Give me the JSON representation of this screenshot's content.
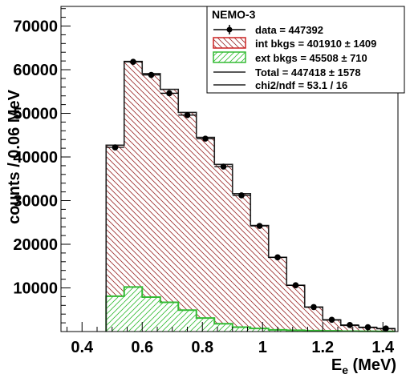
{
  "chart_data": {
    "type": "bar",
    "xlabel_main": "E",
    "xlabel_sub": "e",
    "xlabel_unit": " (MeV)",
    "ylabel": "counts / 0.06 MeV",
    "xlim": [
      0.33,
      1.45
    ],
    "ylim": [
      0,
      74500
    ],
    "x_ticks": [
      0.4,
      0.6,
      0.8,
      1.0,
      1.2,
      1.4
    ],
    "x_tick_labels": [
      "0.4",
      "0.6",
      "0.8",
      "1",
      "1.2",
      "1.4"
    ],
    "y_ticks": [
      10000,
      20000,
      30000,
      40000,
      50000,
      60000,
      70000
    ],
    "y_tick_labels": [
      "10000",
      "20000",
      "30000",
      "40000",
      "50000",
      "60000",
      "70000"
    ],
    "bin_edges": [
      0.48,
      0.54,
      0.6,
      0.66,
      0.72,
      0.78,
      0.84,
      0.9,
      0.96,
      1.02,
      1.08,
      1.14,
      1.2,
      1.26,
      1.32,
      1.38,
      1.44
    ],
    "series": [
      {
        "name": "data = 447392",
        "values": [
          42200,
          61800,
          58800,
          54600,
          49600,
          44200,
          37800,
          31200,
          24200,
          17000,
          10600,
          5600,
          2700,
          1500,
          1000,
          700
        ]
      },
      {
        "name": "int bkgs = 401910 ± 1409",
        "values": [
          34600,
          51700,
          51200,
          48800,
          45300,
          41400,
          36500,
          30600,
          23600,
          16600,
          10300,
          5400,
          2500,
          1300,
          850,
          600
        ]
      },
      {
        "name": "ext bkgs = 45508 ± 710",
        "values": [
          8100,
          10200,
          7900,
          6700,
          4900,
          3100,
          1800,
          1000,
          700,
          400,
          300,
          200,
          150,
          100,
          80,
          50
        ]
      },
      {
        "name": "Total = 447418 ± 1578",
        "values": [
          42700,
          61900,
          59100,
          55500,
          50200,
          44500,
          38300,
          31600,
          24300,
          17000,
          10600,
          5600,
          2650,
          1400,
          930,
          650
        ]
      }
    ],
    "data_errors": [
      206,
      249,
      243,
      234,
      223,
      210,
      194,
      177,
      156,
      130,
      103,
      75,
      52,
      39,
      32,
      26
    ],
    "legend": {
      "title": "NEMO-3",
      "fit_text": "chi2/ndf = 53.1 / 16",
      "placement": "top-right"
    },
    "colors": {
      "data": "#000000",
      "int_bkgs": "#cc2222",
      "ext_bkgs": "#33bb33",
      "total": "#222222"
    }
  }
}
